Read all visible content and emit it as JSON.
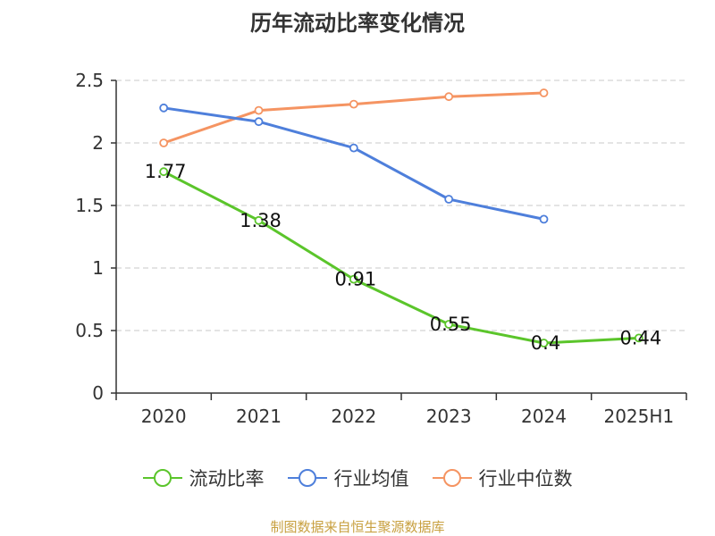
{
  "title": "历年流动比率变化情况",
  "source": "制图数据来自恒生聚源数据库",
  "chart_data": {
    "type": "line",
    "categories": [
      "2020",
      "2021",
      "2022",
      "2023",
      "2024",
      "2025H1"
    ],
    "ylim": [
      0,
      2.5
    ],
    "yticks": [
      "0",
      "0.5",
      "1",
      "1.5",
      "2",
      "2.5"
    ],
    "grid": true,
    "legend_position": "bottom",
    "series": [
      {
        "name": "流动比率",
        "color": "#5bc52b",
        "values": [
          1.77,
          1.38,
          0.91,
          0.55,
          0.4,
          0.44
        ],
        "labels": [
          "1.77",
          "1.38",
          "0.91",
          "0.55",
          "0.4",
          "0.44"
        ]
      },
      {
        "name": "行业均值",
        "color": "#4e7fdb",
        "values": [
          2.28,
          2.17,
          1.96,
          1.55,
          1.39,
          null
        ]
      },
      {
        "name": "行业中位数",
        "color": "#f59462",
        "values": [
          2.0,
          2.26,
          2.31,
          2.37,
          2.4,
          null
        ]
      }
    ]
  }
}
